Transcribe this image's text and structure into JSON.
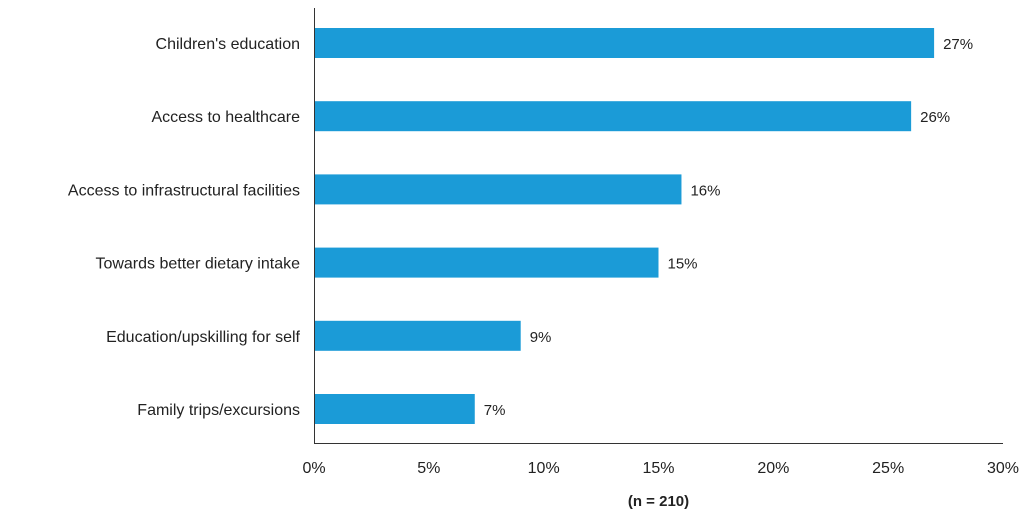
{
  "chart_data": {
    "type": "bar",
    "orientation": "horizontal",
    "categories": [
      "Children's education",
      "Access to healthcare",
      "Access to infrastructural facilities",
      "Towards better dietary intake",
      "Education/upskilling for self",
      "Family trips/excursions"
    ],
    "values": [
      27,
      26,
      16,
      15,
      9,
      7
    ],
    "value_labels": [
      "27%",
      "26%",
      "16%",
      "15%",
      "9%",
      "7%"
    ],
    "xlim": [
      0,
      30
    ],
    "ticks": [
      0,
      5,
      10,
      15,
      20,
      25,
      30
    ],
    "tick_labels": [
      "0%",
      "5%",
      "10%",
      "15%",
      "20%",
      "25%",
      "30%"
    ],
    "note": "(n = 210)",
    "grid": false,
    "bar_color": "#1b9bd7"
  }
}
